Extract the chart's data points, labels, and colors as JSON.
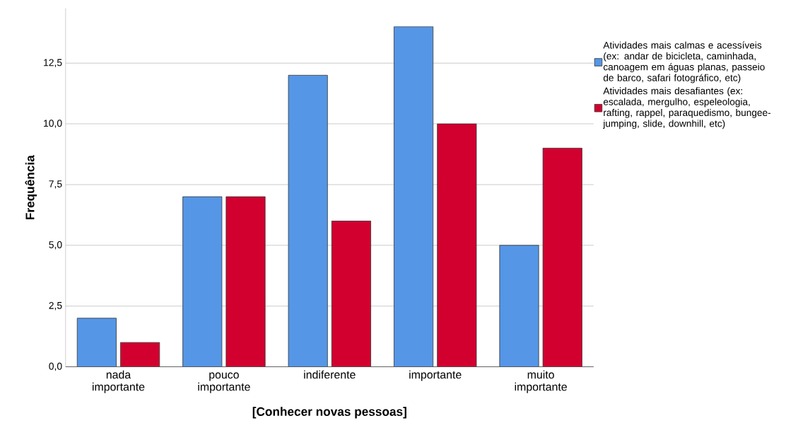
{
  "chart_data": {
    "type": "bar",
    "xlabel": "[Conhecer novas pessoas]",
    "ylabel": "Frequência",
    "categories": [
      "nada importante",
      "pouco importante",
      "indiferente",
      "importante",
      "muito importante"
    ],
    "series": [
      {
        "name": "Atividades mais calmas e acessíveis (ex: andar de bicicleta, caminhada, canoagem em águas planas, passeio de barco, safari fotográfico, etc)",
        "color": "#5596e6",
        "values": [
          2,
          7,
          12,
          14,
          5
        ]
      },
      {
        "name": "Atividades mais desafiantes (ex: escalada, mergulho, espeleologia, rafting, rappel, paraquedismo, bungee-jumping, slide, downhill, etc)",
        "color": "#d2002f",
        "values": [
          1,
          7,
          6,
          10,
          9
        ]
      }
    ],
    "ylim": [
      0,
      14.75
    ],
    "yticks": [
      {
        "value": 0,
        "label": "0,0"
      },
      {
        "value": 2.5,
        "label": "2,5"
      },
      {
        "value": 5,
        "label": "5,0"
      },
      {
        "value": 7.5,
        "label": "7,5"
      },
      {
        "value": 10,
        "label": "10,0"
      },
      {
        "value": 12.5,
        "label": "12,5"
      }
    ],
    "grid": "y",
    "legend": "right"
  }
}
